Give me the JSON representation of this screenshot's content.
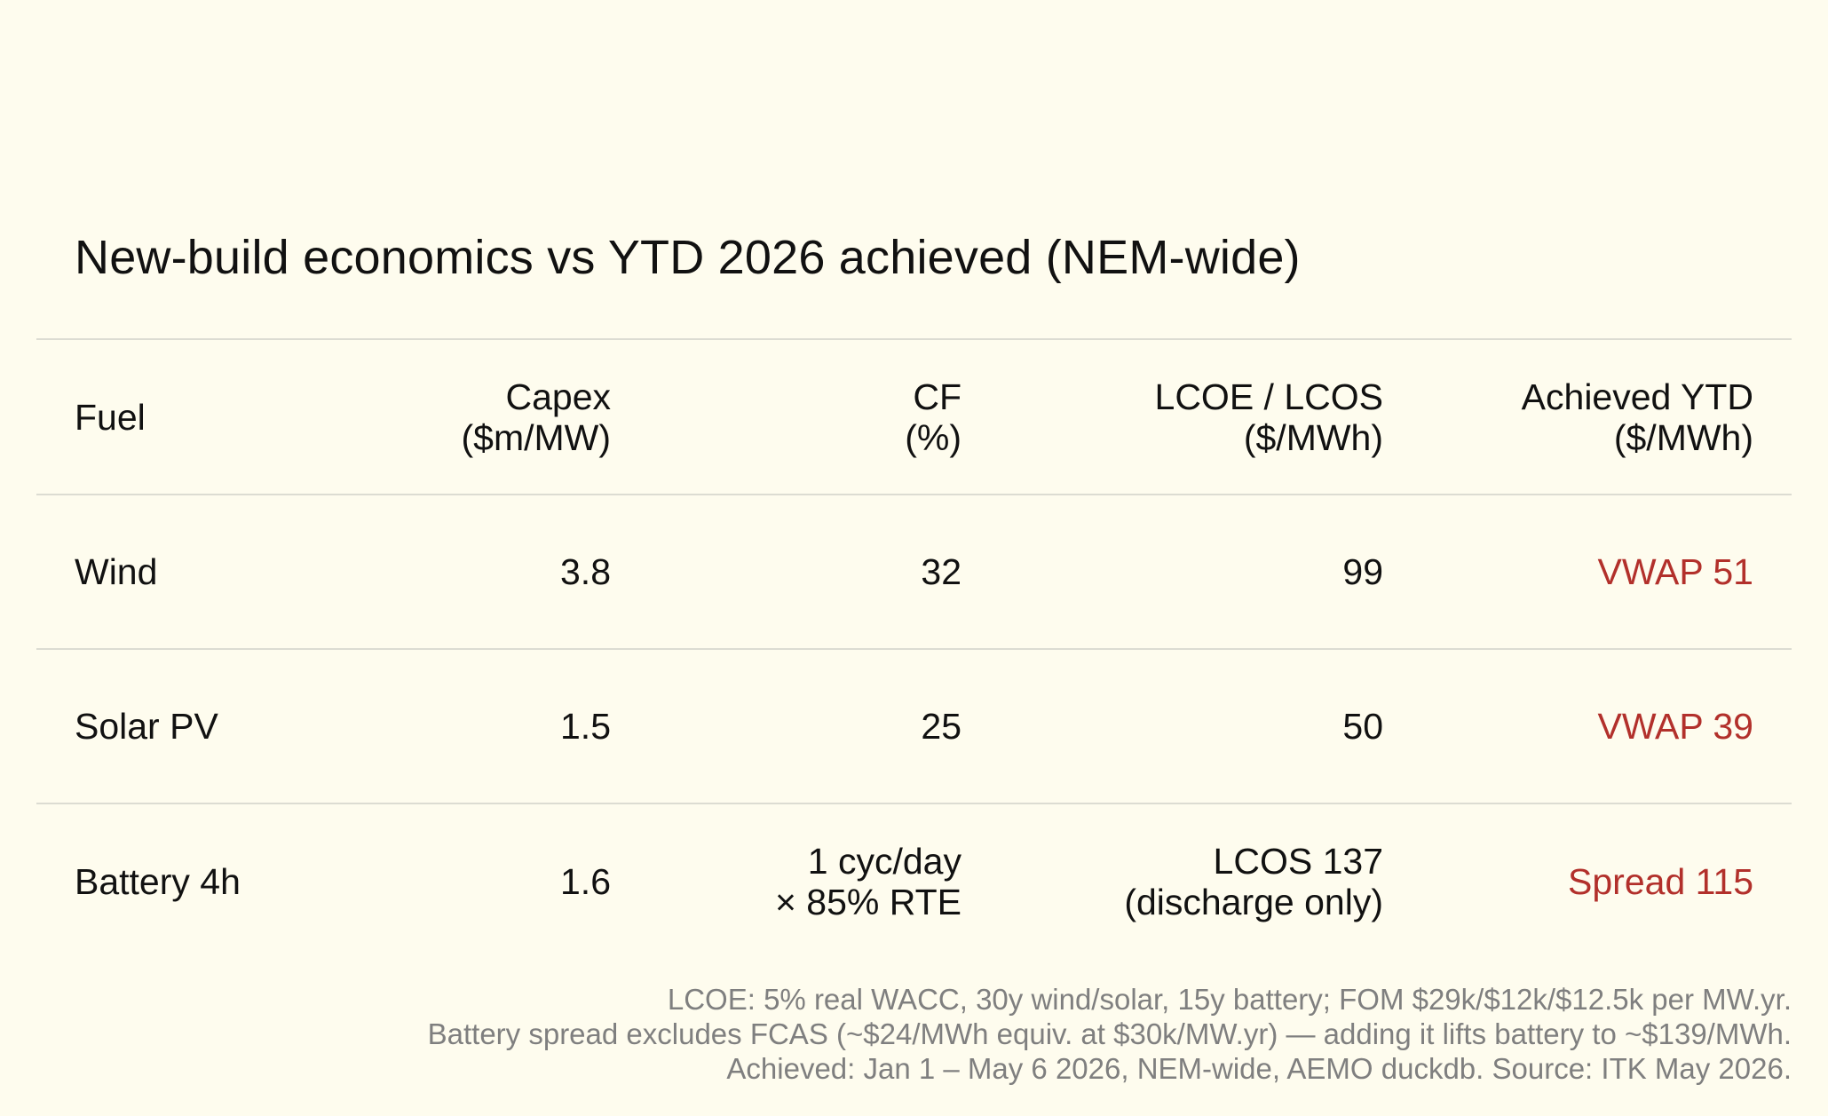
{
  "title": "New-build economics vs YTD 2026 achieved (NEM-wide)",
  "table": {
    "headers": {
      "fuel": "Fuel",
      "capex": [
        "Capex",
        "($m/MW)"
      ],
      "cf": [
        "CF",
        "(%)"
      ],
      "lcoe": [
        "LCOE / LCOS",
        "($/MWh)"
      ],
      "achieved": [
        "Achieved YTD",
        "($/MWh)"
      ]
    },
    "rows": [
      {
        "fuel": "Wind",
        "capex": "3.8",
        "cf": [
          "32"
        ],
        "lcoe": [
          "99"
        ],
        "achieved": "VWAP 51"
      },
      {
        "fuel": "Solar PV",
        "capex": "1.5",
        "cf": [
          "25"
        ],
        "lcoe": [
          "50"
        ],
        "achieved": "VWAP 39"
      },
      {
        "fuel": "Battery 4h",
        "capex": "1.6",
        "cf": [
          "1 cyc/day",
          "× 85% RTE"
        ],
        "lcoe": [
          "LCOS 137",
          "(discharge only)"
        ],
        "achieved": "Spread 115"
      }
    ]
  },
  "notes": [
    "LCOE: 5% real WACC, 30y wind/solar, 15y battery; FOM $29k/$12k/$12.5k per MW.yr.",
    "Battery spread excludes FCAS (~$24/MWh equiv. at $30k/MW.yr) — adding it lifts battery to ~$139/MWh.",
    "Achieved: Jan 1 – May 6 2026, NEM-wide, AEMO duckdb. Source: ITK May 2026."
  ],
  "colors": {
    "background": "#fefcee",
    "text": "#111111",
    "achieved_value": "#b2302b",
    "notes": "#7f7f7f",
    "rule": "#dcdcd2"
  }
}
